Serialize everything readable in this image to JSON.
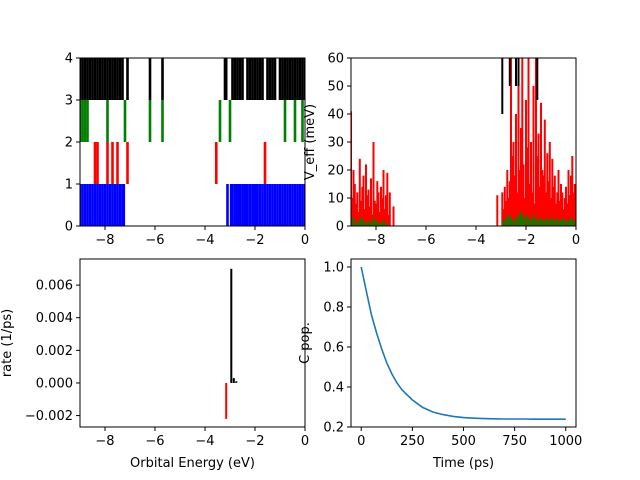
{
  "chart_data": [
    {
      "panel": "top-left",
      "type": "bar",
      "xlim": [
        -9,
        0
      ],
      "ylim": [
        0,
        4
      ],
      "xticks": [
        -8,
        -6,
        -4,
        -2,
        0
      ],
      "yticks": [
        0,
        1,
        2,
        3,
        4
      ],
      "xlabel": "",
      "ylabel": "",
      "series": [
        {
          "color": "#0000ff",
          "y0": 0,
          "y1": 1,
          "x": [
            -9.0,
            -8.9,
            -8.8,
            -8.7,
            -8.6,
            -8.5,
            -8.4,
            -8.3,
            -8.2,
            -8.1,
            -8.0,
            -7.9,
            -7.8,
            -7.7,
            -7.6,
            -7.5,
            -7.4,
            -7.3,
            -7.25,
            -3.1,
            -2.95,
            -2.9,
            -2.8,
            -2.75,
            -2.65,
            -2.6,
            -2.5,
            -2.45,
            -2.35,
            -2.3,
            -2.2,
            -2.1,
            -2.05,
            -1.95,
            -1.9,
            -1.8,
            -1.7,
            -1.6,
            -1.5,
            -1.4,
            -1.3,
            -1.2,
            -1.1,
            -1.0,
            -0.9,
            -0.8,
            -0.7,
            -0.6,
            -0.5,
            -0.4,
            -0.3,
            -0.2,
            -0.1,
            0.0
          ]
        },
        {
          "color": "#ff0000",
          "y0": 1,
          "y1": 2,
          "x": [
            -8.4,
            -8.3,
            -7.9,
            -7.7,
            -7.5,
            -7.1,
            -3.55,
            -1.6
          ]
        },
        {
          "color": "#008000",
          "y0": 2,
          "y1": 3,
          "x": [
            -9.0,
            -8.9,
            -8.8,
            -8.7,
            -7.9,
            -7.2,
            -6.2,
            -5.7,
            -3.4,
            -3.0,
            -0.8,
            -0.4,
            -0.1
          ]
        },
        {
          "color": "#000000",
          "y0": 3,
          "y1": 4,
          "x": [
            -9.0,
            -8.9,
            -8.8,
            -8.7,
            -8.6,
            -8.5,
            -8.4,
            -8.3,
            -8.2,
            -8.1,
            -8.0,
            -7.9,
            -7.8,
            -7.7,
            -7.6,
            -7.5,
            -7.4,
            -7.3,
            -7.1,
            -6.2,
            -5.7,
            -3.2,
            -3.15,
            -2.9,
            -2.8,
            -2.7,
            -2.6,
            -2.5,
            -2.3,
            -2.2,
            -2.1,
            -2.0,
            -1.9,
            -1.8,
            -1.7,
            -1.5,
            -1.4,
            -1.3,
            -1.2,
            -1.0,
            -0.9,
            -0.8,
            -0.7,
            -0.6,
            -0.5,
            -0.4,
            -0.3,
            -0.2,
            -0.1,
            0.0
          ]
        }
      ]
    },
    {
      "panel": "top-right",
      "type": "bar",
      "xlim": [
        -9,
        0
      ],
      "ylim": [
        0,
        60
      ],
      "xticks": [
        -8,
        -6,
        -4,
        -2,
        0
      ],
      "yticks": [
        0,
        10,
        20,
        30,
        40,
        50,
        60
      ],
      "xlabel": "",
      "ylabel": "V_eff (meV)",
      "series": [
        {
          "color": "#ff0000",
          "x": [
            -9.0,
            -8.95,
            -8.9,
            -8.85,
            -8.8,
            -8.75,
            -8.7,
            -8.65,
            -8.6,
            -8.55,
            -8.5,
            -8.45,
            -8.4,
            -8.35,
            -8.3,
            -8.25,
            -8.2,
            -8.15,
            -8.1,
            -8.05,
            -8.0,
            -7.95,
            -7.9,
            -7.85,
            -7.8,
            -7.75,
            -7.7,
            -7.65,
            -7.6,
            -7.55,
            -7.5,
            -7.45,
            -7.3,
            -3.15,
            -2.95,
            -2.9,
            -2.85,
            -2.8,
            -2.75,
            -2.7,
            -2.65,
            -2.6,
            -2.55,
            -2.5,
            -2.45,
            -2.4,
            -2.35,
            -2.3,
            -2.25,
            -2.2,
            -2.15,
            -2.1,
            -2.05,
            -2.0,
            -1.95,
            -1.9,
            -1.85,
            -1.8,
            -1.75,
            -1.7,
            -1.65,
            -1.6,
            -1.55,
            -1.5,
            -1.45,
            -1.4,
            -1.35,
            -1.3,
            -1.25,
            -1.2,
            -1.15,
            -1.1,
            -1.05,
            -1.0,
            -0.95,
            -0.9,
            -0.85,
            -0.8,
            -0.75,
            -0.7,
            -0.65,
            -0.6,
            -0.55,
            -0.5,
            -0.45,
            -0.4,
            -0.35,
            -0.3,
            -0.25,
            -0.2,
            -0.15,
            -0.1,
            -0.05,
            0.0
          ],
          "values": [
            41,
            10,
            20,
            15,
            8,
            12,
            5,
            24,
            9,
            14,
            18,
            6,
            22,
            11,
            13,
            7,
            17,
            4,
            30,
            9,
            8,
            16,
            12,
            5,
            14,
            10,
            20,
            6,
            11,
            19,
            4,
            12,
            7,
            11,
            12,
            6,
            14,
            9,
            20,
            10,
            16,
            60,
            25,
            30,
            18,
            40,
            12,
            55,
            20,
            35,
            60,
            22,
            10,
            45,
            28,
            60,
            15,
            30,
            12,
            50,
            8,
            60,
            25,
            33,
            14,
            44,
            20,
            18,
            38,
            12,
            26,
            16,
            30,
            10,
            24,
            14,
            18,
            8,
            12,
            20,
            9,
            15,
            12,
            6,
            10,
            14,
            8,
            20,
            11,
            18,
            25,
            12,
            15,
            9
          ]
        },
        {
          "color": "#008000",
          "x": [
            -9.0,
            -8.9,
            -8.8,
            -8.7,
            -8.6,
            -8.5,
            -8.4,
            -8.3,
            -8.2,
            -8.1,
            -8.0,
            -7.9,
            -7.8,
            -7.7,
            -7.6,
            -2.9,
            -2.8,
            -2.7,
            -2.6,
            -2.5,
            -2.4,
            -2.3,
            -2.2,
            -2.1,
            -2.0,
            -1.9,
            -1.8,
            -1.7,
            -1.6,
            -1.5,
            -1.4,
            -1.3,
            -1.2,
            -1.1,
            -1.0,
            -0.9,
            -0.8,
            -0.7,
            -0.6,
            -0.5,
            -0.4,
            -0.3,
            -0.2,
            -0.1,
            0.0
          ],
          "values": [
            2,
            3,
            1,
            2,
            3,
            2,
            1,
            2,
            1,
            3,
            2,
            1,
            1,
            2,
            1,
            2,
            3,
            4,
            3,
            2,
            3,
            4,
            5,
            3,
            4,
            3,
            2,
            4,
            3,
            2,
            3,
            2,
            3,
            2,
            3,
            2,
            3,
            2,
            2,
            3,
            2,
            2,
            3,
            2,
            2
          ]
        },
        {
          "color": "#000000",
          "x": [
            -2.95,
            -2.65,
            -2.4,
            -2.3,
            -1.55
          ],
          "values": [
            60,
            60,
            60,
            60,
            60
          ],
          "base": [
            40,
            50,
            50,
            50,
            45
          ]
        }
      ]
    },
    {
      "panel": "bottom-left",
      "type": "bar",
      "xlim": [
        -9,
        0
      ],
      "ylim": [
        -0.0027,
        0.0076
      ],
      "xticks": [
        -8,
        -6,
        -4,
        -2,
        0
      ],
      "yticks": [
        -0.002,
        0.0,
        0.002,
        0.004,
        0.006
      ],
      "ytick_labels": [
        "−0.002",
        "0.000",
        "0.002",
        "0.004",
        "0.006"
      ],
      "xlabel": "Orbital Energy (eV)",
      "ylabel": "rate (1/ps)",
      "series": [
        {
          "color": "#ff0000",
          "x": [
            -3.15
          ],
          "values": [
            -0.0022
          ]
        },
        {
          "color": "#000000",
          "x": [
            -2.95,
            -2.85,
            -2.75
          ],
          "values": [
            0.007,
            0.0003,
            0.0001
          ]
        }
      ]
    },
    {
      "panel": "bottom-right",
      "type": "line",
      "xlim": [
        -50,
        1050
      ],
      "ylim": [
        0.2,
        1.04
      ],
      "xticks": [
        0,
        250,
        500,
        750,
        1000
      ],
      "yticks": [
        0.2,
        0.4,
        0.6,
        0.8,
        1.0
      ],
      "ytick_labels": [
        "0.2",
        "0.4",
        "0.6",
        "0.8",
        "1.0"
      ],
      "xlabel": "Time (ps)",
      "ylabel": "C pop.",
      "series": [
        {
          "color": "#1f77b4",
          "x": [
            0,
            25,
            50,
            75,
            100,
            125,
            150,
            175,
            200,
            250,
            300,
            350,
            400,
            450,
            500,
            550,
            600,
            650,
            700,
            750,
            800,
            850,
            900,
            950,
            1000
          ],
          "values": [
            1.0,
            0.88,
            0.76,
            0.67,
            0.59,
            0.52,
            0.465,
            0.42,
            0.385,
            0.335,
            0.298,
            0.275,
            0.262,
            0.253,
            0.247,
            0.244,
            0.242,
            0.241,
            0.24,
            0.24,
            0.24,
            0.239,
            0.239,
            0.239,
            0.239
          ]
        }
      ]
    }
  ]
}
